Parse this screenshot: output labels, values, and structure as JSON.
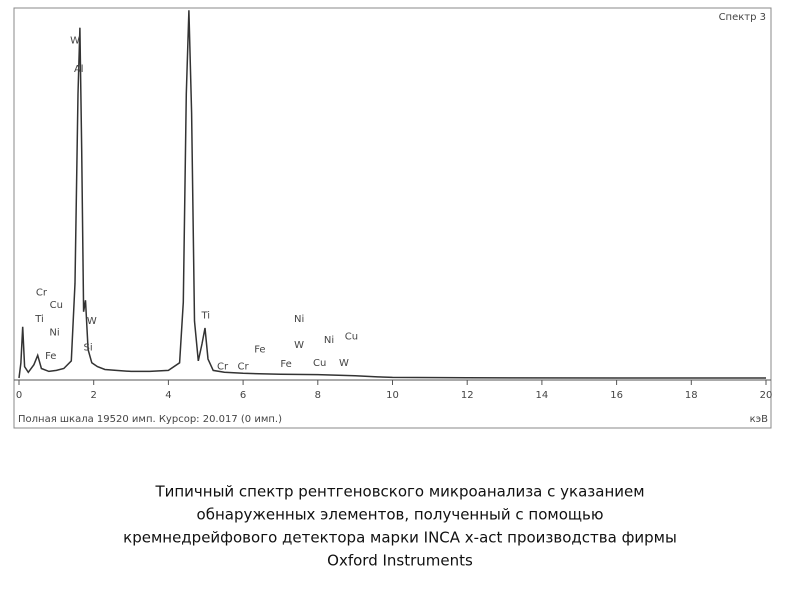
{
  "chart_data": {
    "type": "line",
    "title": "Спектр 3",
    "x_label": "кэВ",
    "footer": "Полная шкала 19520 имп. Курсор: 20.017 (0 имп.)",
    "x": [
      0,
      0.05,
      0.1,
      0.15,
      0.25,
      0.4,
      0.5,
      0.6,
      0.8,
      1.0,
      1.2,
      1.4,
      1.5,
      1.58,
      1.63,
      1.68,
      1.73,
      1.78,
      1.85,
      1.95,
      2.1,
      2.3,
      2.6,
      3.0,
      3.5,
      4.0,
      4.3,
      4.4,
      4.48,
      4.55,
      4.62,
      4.7,
      4.8,
      4.9,
      4.98,
      5.06,
      5.2,
      5.5,
      6.0,
      7.0,
      8.0,
      9.0,
      9.6,
      10,
      12,
      16,
      20
    ],
    "series": [
      {
        "color": "#333333",
        "values": [
          0,
          800,
          2700,
          600,
          300,
          700,
          1200,
          500,
          350,
          400,
          500,
          900,
          5000,
          15000,
          18480,
          12000,
          3500,
          4100,
          1500,
          800,
          600,
          450,
          400,
          350,
          350,
          400,
          800,
          4000,
          15000,
          19400,
          14000,
          3000,
          900,
          1800,
          2640,
          1000,
          400,
          300,
          250,
          200,
          180,
          120,
          60,
          30,
          10,
          0,
          0
        ]
      }
    ],
    "xlim": [
      0,
      20
    ],
    "ylim": [
      0,
      19520
    ],
    "xticks": [
      0,
      2,
      4,
      6,
      8,
      10,
      12,
      14,
      16,
      18,
      20
    ],
    "annotations": [
      {
        "text": "W",
        "x": 1.5,
        "y": 17800
      },
      {
        "text": "Al",
        "x": 1.6,
        "y": 16300
      },
      {
        "text": "Cr",
        "x": 0.6,
        "y": 4500
      },
      {
        "text": "Cu",
        "x": 1.0,
        "y": 3850
      },
      {
        "text": "Ti",
        "x": 0.55,
        "y": 3100
      },
      {
        "text": "Ni",
        "x": 0.95,
        "y": 2400
      },
      {
        "text": "Fe",
        "x": 0.85,
        "y": 1150
      },
      {
        "text": "W",
        "x": 1.95,
        "y": 3000
      },
      {
        "text": "Si",
        "x": 1.85,
        "y": 1600
      },
      {
        "text": "Ti",
        "x": 5.0,
        "y": 3300
      },
      {
        "text": "Cr",
        "x": 5.45,
        "y": 600
      },
      {
        "text": "Cr",
        "x": 6.0,
        "y": 600
      },
      {
        "text": "Fe",
        "x": 6.45,
        "y": 1500
      },
      {
        "text": "Fe",
        "x": 7.15,
        "y": 750
      },
      {
        "text": "Ni",
        "x": 7.5,
        "y": 3100
      },
      {
        "text": "W",
        "x": 7.5,
        "y": 1750
      },
      {
        "text": "Ni",
        "x": 8.3,
        "y": 2000
      },
      {
        "text": "Cu",
        "x": 8.9,
        "y": 2200
      },
      {
        "text": "Cu",
        "x": 8.05,
        "y": 800
      },
      {
        "text": "W",
        "x": 8.7,
        "y": 800
      }
    ]
  },
  "caption": [
    "Типичный спектр рентгеновского микроанализа с указанием",
    "обнаруженных элементов, полученный с помощью",
    "кремнедрейфового детектора марки INCA x-act производства фирмы",
    "Oxford Instruments"
  ]
}
